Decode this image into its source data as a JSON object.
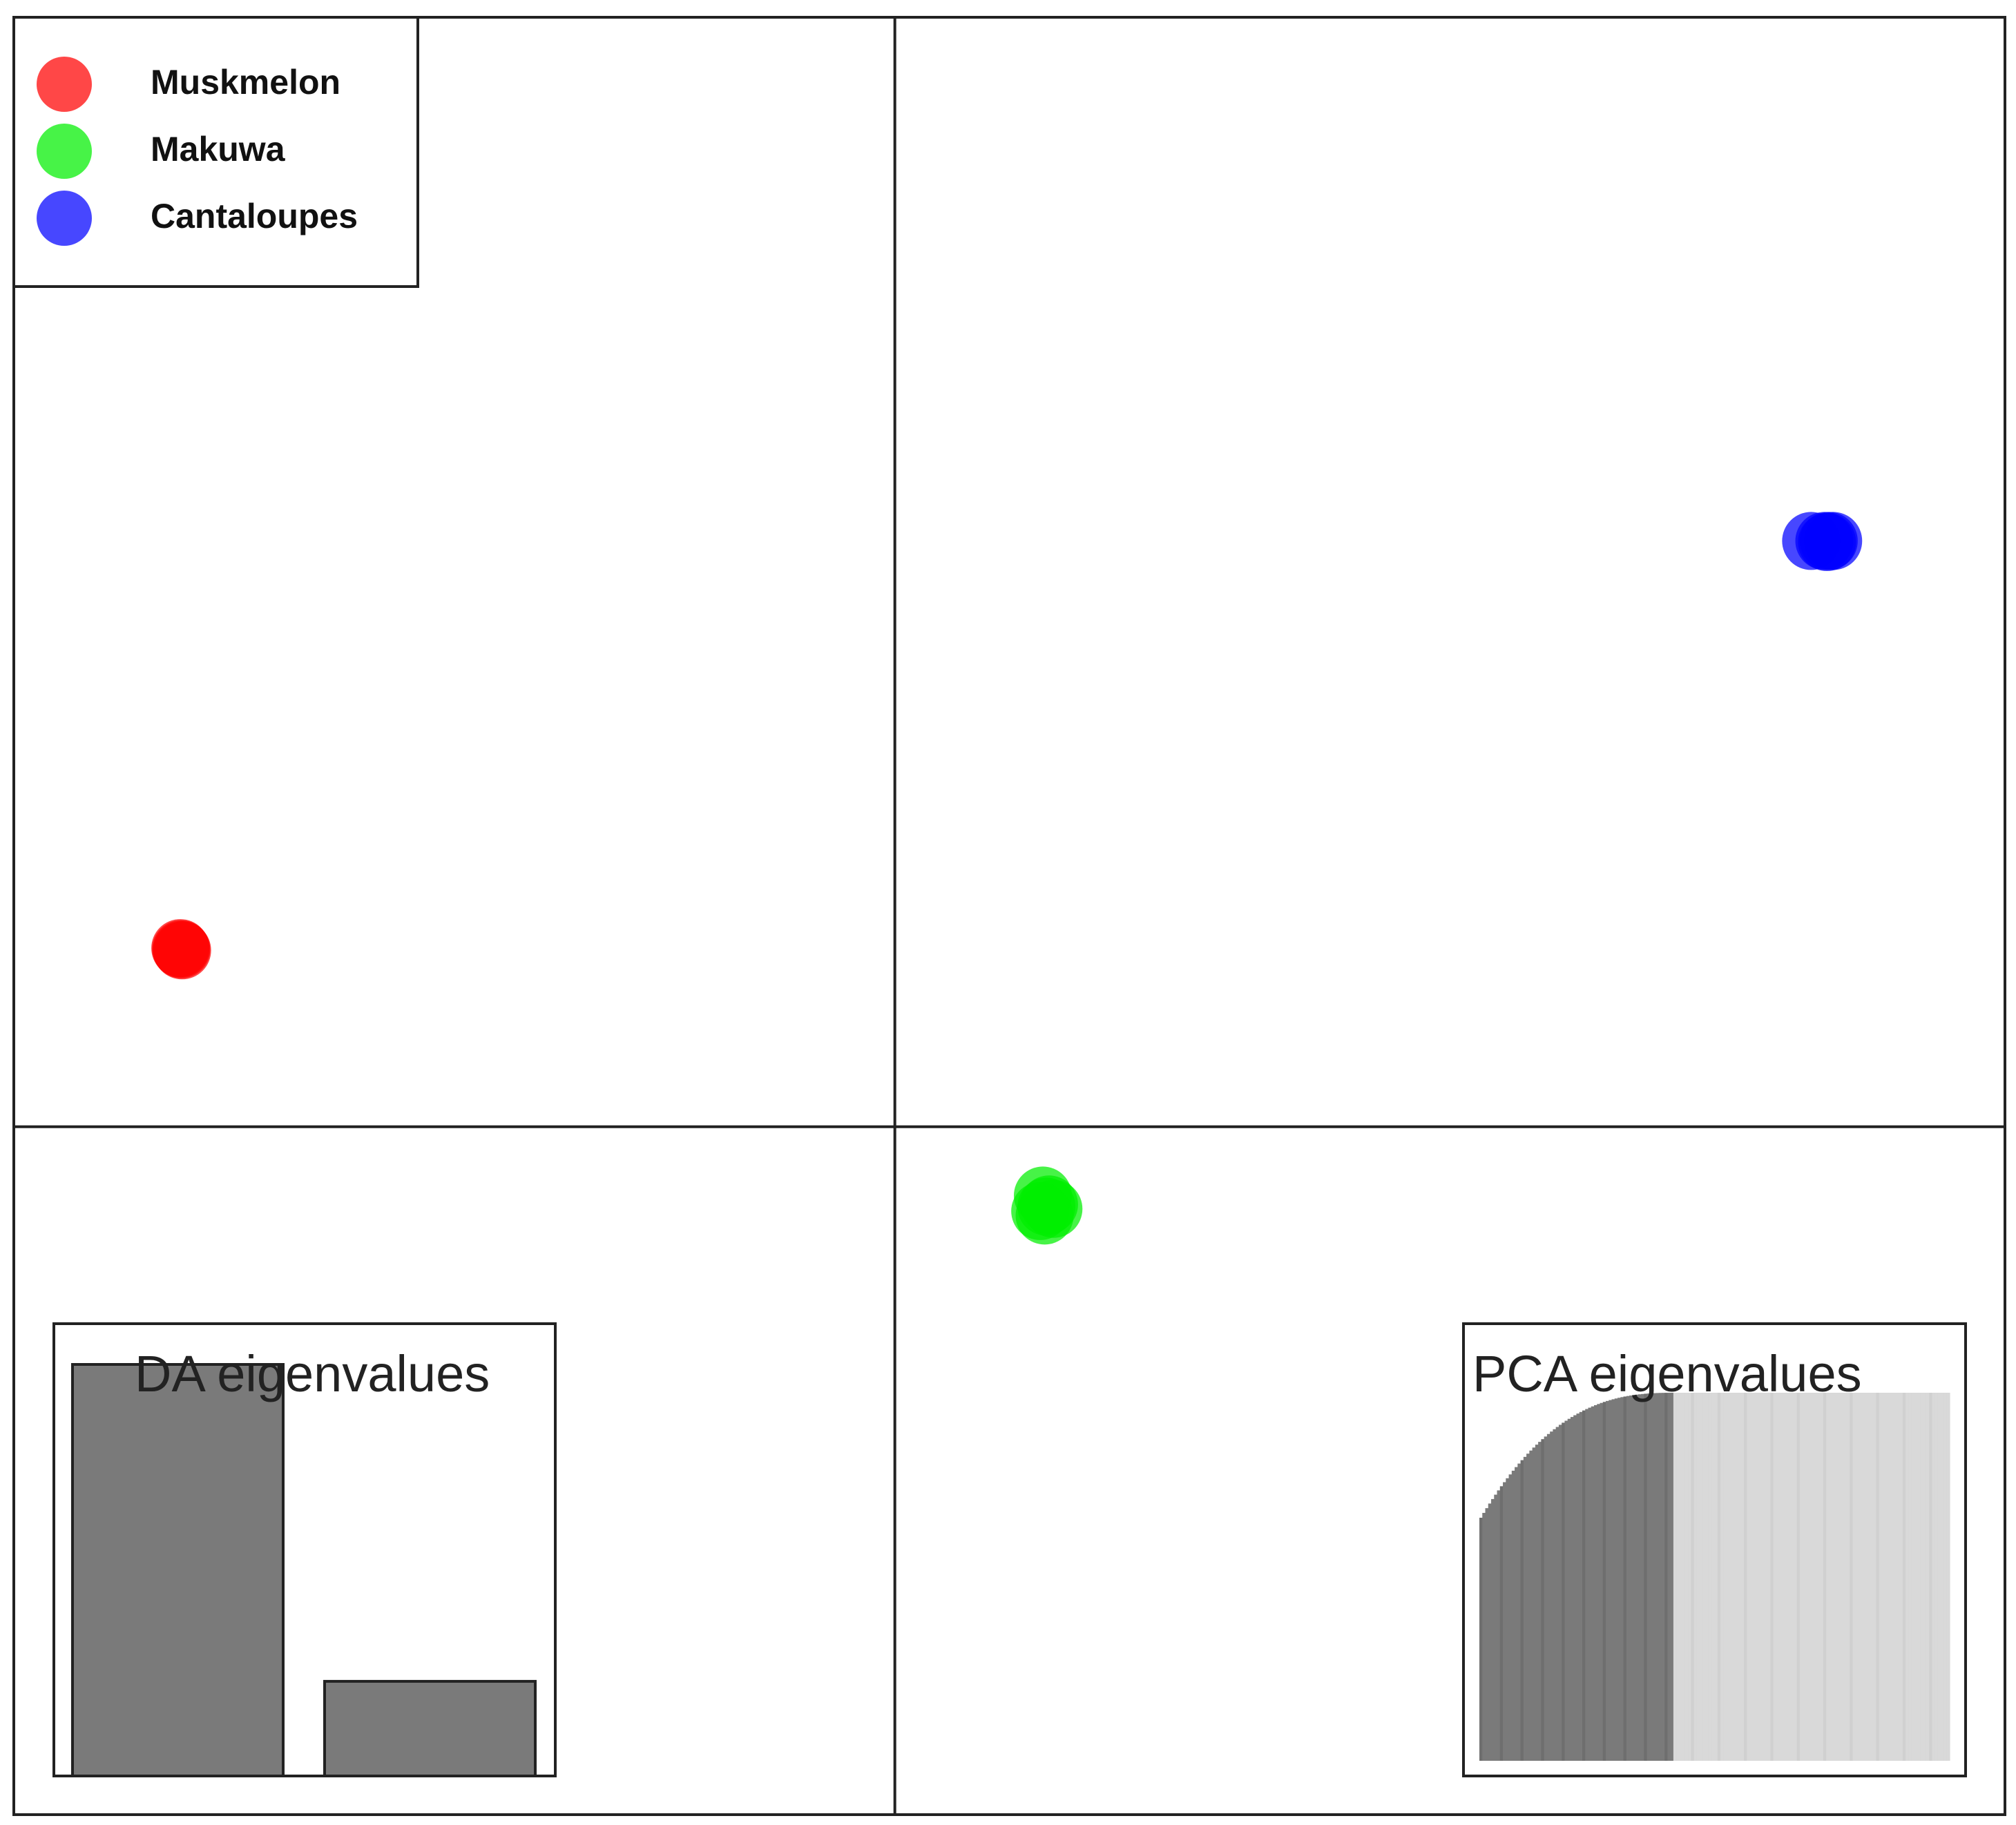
{
  "chart_data": {
    "type": "scatter",
    "title": "",
    "xlabel": "",
    "ylabel": "",
    "xlim": [
      -1,
      1.26
    ],
    "ylim": [
      -0.62,
      1
    ],
    "grid": false,
    "axis_lines": {
      "x": 0,
      "y": 0
    },
    "legend": {
      "position": "top-left",
      "entries": [
        {
          "label": "Muskmelon",
          "color": "#ff0000"
        },
        {
          "label": "Makuwa",
          "color": "#00ee00"
        },
        {
          "label": "Cantaloupes",
          "color": "#0000ff"
        }
      ]
    },
    "series": [
      {
        "name": "Muskmelon",
        "color": "#ff0000",
        "points": [
          {
            "x": -0.81,
            "y": 0.16
          },
          {
            "x": -0.809,
            "y": 0.159
          },
          {
            "x": -0.811,
            "y": 0.161
          }
        ]
      },
      {
        "name": "Makuwa",
        "color": "#00ee00",
        "points": [
          {
            "x": 0.168,
            "y": -0.062
          },
          {
            "x": 0.172,
            "y": -0.072
          },
          {
            "x": 0.18,
            "y": -0.074
          },
          {
            "x": 0.17,
            "y": -0.08
          },
          {
            "x": 0.165,
            "y": -0.076
          },
          {
            "x": 0.175,
            "y": -0.07
          }
        ]
      },
      {
        "name": "Cantaloupes",
        "color": "#0000ff",
        "points": [
          {
            "x": 1.04,
            "y": 0.528
          },
          {
            "x": 1.055,
            "y": 0.528
          },
          {
            "x": 1.06,
            "y": 0.528
          },
          {
            "x": 1.065,
            "y": 0.528
          },
          {
            "x": 1.058,
            "y": 0.527
          }
        ]
      }
    ],
    "insets": [
      {
        "title": "DA eigenvalues",
        "position": "bottom-left",
        "type": "bar",
        "values": [
          1.0,
          0.23
        ],
        "colors": [
          "#7a7a7a",
          "#7a7a7a"
        ]
      },
      {
        "title": "PCA eigenvalues",
        "position": "bottom-right",
        "type": "bar",
        "n_retained": 66,
        "n_total": 160,
        "retained_color": "#7a7a7a",
        "discarded_color": "#d9d9d9"
      }
    ]
  }
}
